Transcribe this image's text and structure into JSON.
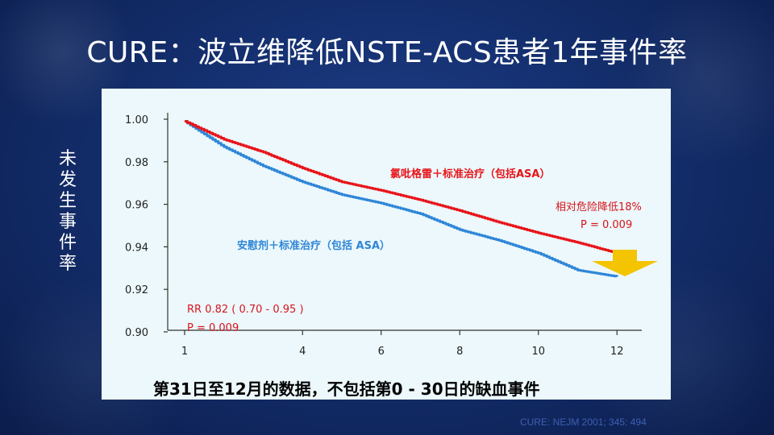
{
  "slide": {
    "title": "CURE：波立维降低NSTE-ACS患者1年事件率",
    "y_axis_label": "未发生事件率",
    "source": "CURE: NEJM 2001; 345: 494"
  },
  "colors": {
    "clopidogrel": "#e8141a",
    "placebo": "#2f86d8",
    "arrow": "#f4c400",
    "annotation_red": "#d8141b",
    "annotation_blue": "#2f86d8"
  },
  "chart_data": {
    "type": "line",
    "x_ticks": [
      "1",
      "4",
      "6",
      "8",
      "10",
      "12"
    ],
    "y_ticks": [
      "1.00",
      "0.98",
      "0.96",
      "0.94",
      "0.92",
      "0.90"
    ],
    "ylim": [
      0.9,
      1.0
    ],
    "grid": false,
    "series": [
      {
        "name": "氯吡格雷＋标准治疗（包括ASA）",
        "x": [
          "1",
          "2",
          "3",
          "4",
          "5",
          "6",
          "7",
          "8",
          "9",
          "10",
          "11",
          "12"
        ],
        "values": [
          0.999,
          0.9905,
          0.9845,
          0.977,
          0.9705,
          0.9665,
          0.962,
          0.957,
          0.9515,
          0.9465,
          0.942,
          0.937
        ]
      },
      {
        "name": "安慰剂＋标准治疗（包括 ASA）",
        "x": [
          "1",
          "2",
          "3",
          "4",
          "5",
          "6",
          "7",
          "8",
          "9",
          "10",
          "11",
          "12"
        ],
        "values": [
          0.999,
          0.987,
          0.978,
          0.9705,
          0.9645,
          0.9605,
          0.9555,
          0.948,
          0.943,
          0.937,
          0.929,
          0.926
        ]
      }
    ],
    "annotations": {
      "rr": "RR 0.82 ( 0.70 - 0.95 )",
      "p_left": "P = 0.009",
      "risk_reduction": "相对危险降低18%",
      "p_right": "P = 0.009"
    },
    "footer": "第31日至12月的数据，不包括第0 - 30日的缺血事件"
  }
}
